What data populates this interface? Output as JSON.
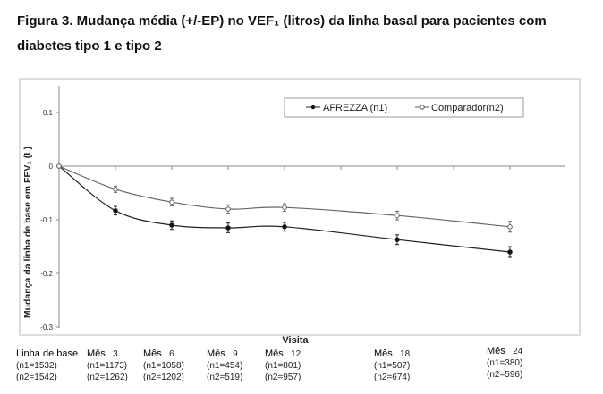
{
  "title_line1": "Figura 3. Mudança média (+/-EP) no VEF₁ (litros) da linha basal para pacientes com",
  "title_line2": "diabetes tipo 1 e tipo 2",
  "chart_data": {
    "type": "line",
    "title": "Figura 3. Mudança média (+/-EP) no VEF₁ (litros) da linha basal para pacientes com diabetes tipo 1 e tipo 2",
    "xlabel": "Visita",
    "ylabel": "Mudança da linha de base em FEV₁ (L)",
    "ylim": [
      -0.3,
      0.15
    ],
    "yticks": [
      0.1,
      0,
      -0.1,
      -0.2,
      -0.3
    ],
    "ytick_labels": [
      "0.1",
      "0",
      "-0.1",
      "-0.2",
      "-0.3"
    ],
    "x_months": [
      0,
      3,
      6,
      9,
      12,
      18,
      24
    ],
    "categories": [
      {
        "name": "Linha de base",
        "month": "",
        "n1": "(n1=1532)",
        "n2": "(n2=1542)"
      },
      {
        "name": "Mês",
        "month": "3",
        "n1": "(n1=1173)",
        "n2": "(n2=1262)"
      },
      {
        "name": "Mês",
        "month": "6",
        "n1": "(n1=1058)",
        "n2": "(n2=1202)"
      },
      {
        "name": "Mês",
        "month": "9",
        "n1": "(n1=454)",
        "n2": "(n2=519)"
      },
      {
        "name": "Mês",
        "month": "12",
        "n1": "(n1=801)",
        "n2": "(n2=957)"
      },
      {
        "name": "Mês",
        "month": "18",
        "n1": "(n1=507)",
        "n2": "(n2=674)"
      },
      {
        "name": "Mês",
        "month": "24",
        "n1": "(n1=380)",
        "n2": "(n2=596)"
      }
    ],
    "series": [
      {
        "name": "AFREZZA (n1)",
        "marker": "filled",
        "values": [
          0,
          -0.083,
          -0.11,
          -0.115,
          -0.113,
          -0.137,
          -0.16
        ],
        "se": [
          0,
          0.008,
          0.008,
          0.009,
          0.008,
          0.009,
          0.01
        ]
      },
      {
        "name": "Comparador(n2)",
        "marker": "open",
        "values": [
          0,
          -0.043,
          -0.067,
          -0.08,
          -0.077,
          -0.092,
          -0.113
        ],
        "se": [
          0,
          0.006,
          0.007,
          0.008,
          0.007,
          0.008,
          0.01
        ]
      }
    ],
    "legend": "top-right",
    "grid": false
  }
}
